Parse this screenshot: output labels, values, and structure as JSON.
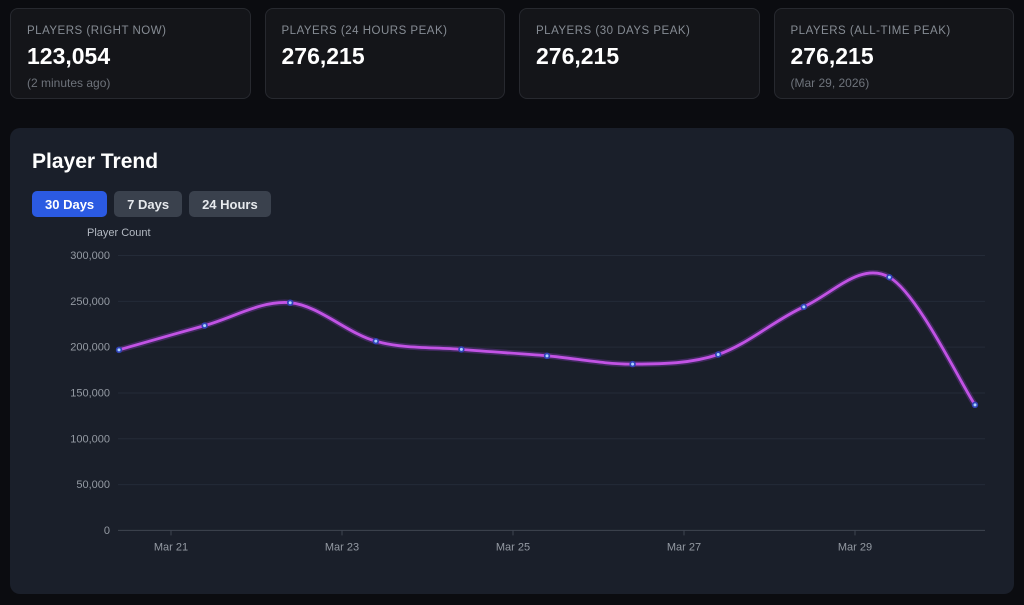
{
  "cards": [
    {
      "label": "PLAYERS (RIGHT NOW)",
      "value": "123,054",
      "note": "(2 minutes ago)"
    },
    {
      "label": "PLAYERS (24 HOURS PEAK)",
      "value": "276,215",
      "note": ""
    },
    {
      "label": "PLAYERS (30 DAYS PEAK)",
      "value": "276,215",
      "note": ""
    },
    {
      "label": "PLAYERS (ALL-TIME PEAK)",
      "value": "276,215",
      "note": "(Mar 29, 2026)"
    }
  ],
  "panel": {
    "title": "Player Trend",
    "tabs": [
      {
        "label": "30 Days",
        "active": true
      },
      {
        "label": "7 Days",
        "active": false
      },
      {
        "label": "24 Hours",
        "active": false
      }
    ]
  },
  "chart_data": {
    "type": "line",
    "title": "Player Trend",
    "ylabel": "Player Count",
    "ylim": [
      0,
      300000
    ],
    "grid": "horizontal",
    "legend": "none",
    "x": [
      "Mar 20",
      "Mar 21",
      "Mar 22",
      "Mar 23",
      "Mar 24",
      "Mar 25",
      "Mar 26",
      "Mar 27",
      "Mar 28",
      "Mar 29",
      "Mar 30"
    ],
    "values": [
      197000,
      223500,
      248500,
      206500,
      197500,
      190500,
      181500,
      192000,
      244000,
      276215,
      137000
    ],
    "x_tick_labels": [
      "Mar 21",
      "Mar 23",
      "Mar 25",
      "Mar 27",
      "Mar 29"
    ],
    "y_tick_labels": [
      "0",
      "50,000",
      "100,000",
      "150,000",
      "200,000",
      "250,000",
      "300,000"
    ],
    "y_tick_values": [
      0,
      50000,
      100000,
      150000,
      200000,
      250000,
      300000
    ]
  },
  "colors": {
    "accent_blue": "#2b5ae2",
    "line": "#c253e4",
    "line_glow": "#8a3bbf",
    "marker_ring": "#3143b8",
    "marker_center": "#aad4ff",
    "gridline": "#242b38",
    "axis_line": "#3f4550",
    "tick_text": "#949aa3"
  }
}
